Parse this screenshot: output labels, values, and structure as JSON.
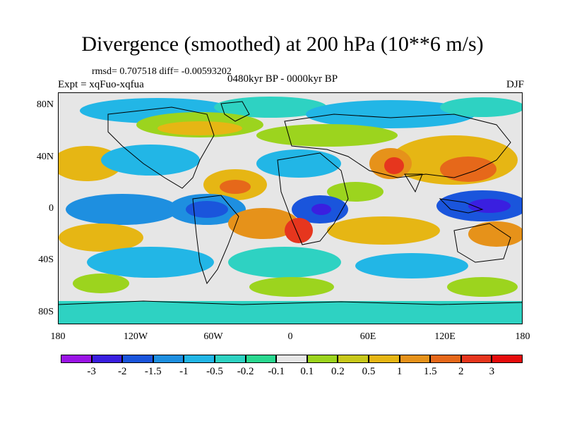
{
  "header": {
    "title": "Divergence (smoothed) at 200 hPa (10**6 m/s)",
    "stats": "rmsd= 0.707518 diff= -0.00593202",
    "expt": "Expt = xqFuo-xqfua",
    "period": "0480kyr BP - 0000kyr BP",
    "season": "DJF"
  },
  "axes": {
    "y_labels": [
      "80N",
      "40N",
      "0",
      "40S",
      "80S"
    ],
    "x_labels": [
      "180",
      "120W",
      "60W",
      "0",
      "60E",
      "120E",
      "180"
    ]
  },
  "colorbar": {
    "labels": [
      "-3",
      "-2",
      "-1.5",
      "-1",
      "-0.5",
      "-0.2",
      "-0.1",
      "0.1",
      "0.2",
      "0.5",
      "1",
      "1.5",
      "2",
      "3"
    ],
    "colors": [
      "#9b14e6",
      "#3a1fe0",
      "#1a55dc",
      "#1e8fe0",
      "#22b6e6",
      "#2ed2c2",
      "#2ad890",
      "#e6e6e6",
      "#9cd41e",
      "#c8c81a",
      "#e6b614",
      "#e6921a",
      "#e6681a",
      "#e6361e",
      "#e60c0c"
    ]
  },
  "map_colors": {
    "land_outline": "#000000",
    "background": "#e6e6e6"
  }
}
